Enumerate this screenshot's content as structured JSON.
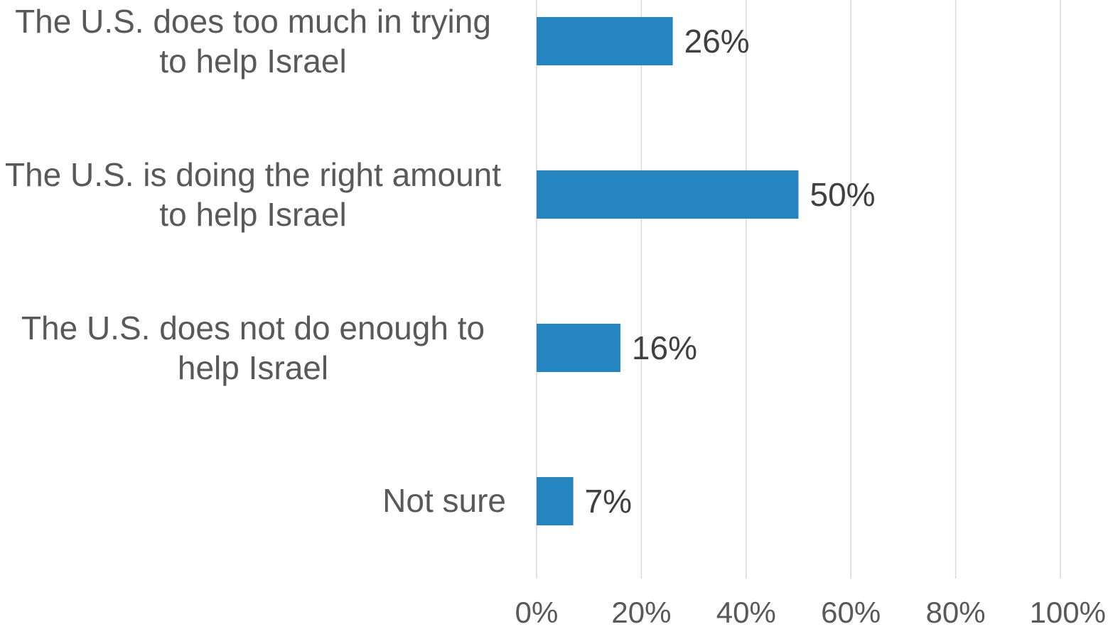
{
  "chart_data": {
    "type": "bar",
    "orientation": "horizontal",
    "categories": [
      "The U.S. does too much in trying to help Israel",
      "The U.S. is doing the right amount to help Israel",
      "The U.S. does not do enough to help Israel",
      "Not sure"
    ],
    "values": [
      26,
      50,
      16,
      7
    ],
    "data_labels": [
      "26%",
      "50%",
      "16%",
      "7%"
    ],
    "xlim": [
      0,
      100
    ],
    "x_ticks": [
      0,
      20,
      40,
      60,
      80,
      100
    ],
    "x_tick_labels": [
      "0%",
      "20%",
      "40%",
      "60%",
      "80%",
      "100%"
    ],
    "grid": "vertical",
    "legend": "none",
    "bar_color": "#2585C1",
    "grid_color": "#D9D9D9",
    "text_color": "#595959"
  }
}
